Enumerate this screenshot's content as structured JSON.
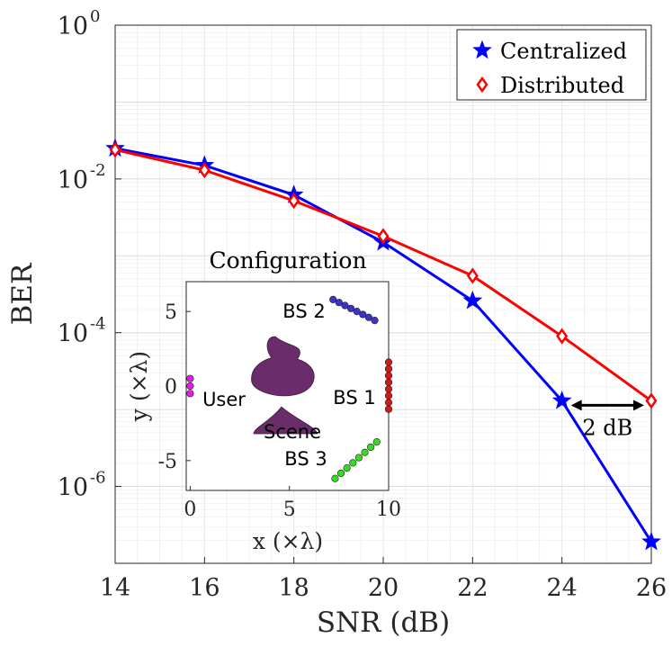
{
  "chart_data": [
    {
      "type": "line",
      "xlabel": "SNR (dB)",
      "ylabel": "BER",
      "yscale": "log",
      "xlim": [
        14,
        26
      ],
      "ylim": [
        1e-07,
        1
      ],
      "grid": true,
      "xticks": [
        14,
        16,
        18,
        20,
        22,
        24,
        26
      ],
      "xtick_labels": [
        "14",
        "16",
        "18",
        "20",
        "22",
        "24",
        "26"
      ],
      "yticks": [
        1e-06,
        0.0001,
        0.01,
        1
      ],
      "ytick_labels": [
        {
          "base": "10",
          "exp": "-6"
        },
        {
          "base": "10",
          "exp": "-4"
        },
        {
          "base": "10",
          "exp": "-2"
        },
        {
          "base": "10",
          "exp": "0"
        }
      ],
      "legend_position": "top-right",
      "series": [
        {
          "name": "Centralized",
          "color": "#0000ff",
          "marker": "star",
          "x": [
            14,
            16,
            18,
            20,
            22,
            24,
            26
          ],
          "y": [
            0.025,
            0.015,
            0.0062,
            0.0015,
            0.00026,
            1.3e-05,
            1.9e-07
          ]
        },
        {
          "name": "Distributed",
          "color": "#ff0000",
          "marker": "diamond",
          "x": [
            14,
            16,
            18,
            20,
            22,
            24,
            26
          ],
          "y": [
            0.024,
            0.013,
            0.0052,
            0.0018,
            0.00055,
            9e-05,
            1.3e-05
          ]
        }
      ],
      "annotation": {
        "text": "2 dB",
        "from_x": 24,
        "to_x": 26,
        "y": 1.3e-05,
        "meaning": "SNR gap between Centralized and Distributed at the same BER"
      }
    },
    {
      "type": "scatter",
      "title": "Configuration",
      "xlabel": "x (×λ)",
      "ylabel": "y (×λ)",
      "xlim": [
        -0.2,
        10
      ],
      "ylim": [
        -7,
        7
      ],
      "xticks": [
        0,
        5,
        10
      ],
      "xtick_labels": [
        "0",
        "5",
        "10"
      ],
      "yticks": [
        -5,
        0,
        5
      ],
      "ytick_labels": [
        "-5",
        "0",
        "5"
      ],
      "series": [
        {
          "name": "BS 2",
          "color": "#3d33c8",
          "points": [
            [
              7.2,
              5.8
            ],
            [
              7.5,
              5.6
            ],
            [
              7.8,
              5.4
            ],
            [
              8.1,
              5.2
            ],
            [
              8.4,
              5.0
            ],
            [
              8.7,
              4.8
            ],
            [
              9.0,
              4.6
            ],
            [
              9.3,
              4.4
            ]
          ]
        },
        {
          "name": "BS 1",
          "color": "#d31919",
          "points": [
            [
              10,
              1.6
            ],
            [
              10,
              1.15
            ],
            [
              10,
              0.7
            ],
            [
              10,
              0.25
            ],
            [
              10,
              -0.2
            ],
            [
              10,
              -0.65
            ],
            [
              10,
              -1.1
            ],
            [
              10,
              -1.55
            ]
          ]
        },
        {
          "name": "BS 3",
          "color": "#33dd22",
          "points": [
            [
              7.3,
              -6.2
            ],
            [
              7.6,
              -5.85
            ],
            [
              7.9,
              -5.5
            ],
            [
              8.2,
              -5.15
            ],
            [
              8.5,
              -4.8
            ],
            [
              8.8,
              -4.45
            ],
            [
              9.1,
              -4.1
            ],
            [
              9.4,
              -3.75
            ]
          ]
        },
        {
          "name": "User",
          "color": "#e020e0",
          "points": [
            [
              0,
              0.5
            ],
            [
              0,
              0
            ],
            [
              0,
              -0.5
            ]
          ]
        },
        {
          "name": "Scene",
          "color": "#6b2c6b",
          "points": []
        }
      ]
    }
  ]
}
